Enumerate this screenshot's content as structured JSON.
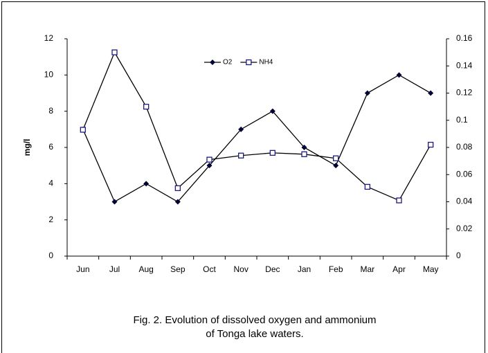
{
  "chart_data": {
    "type": "line",
    "categories": [
      "Jun",
      "Jul",
      "Aug",
      "Sep",
      "Oct",
      "Nov",
      "Dec",
      "Jan",
      "Feb",
      "Mar",
      "Apr",
      "May"
    ],
    "series": [
      {
        "name": "O2",
        "color": "#000033",
        "marker": "diamond",
        "values": [
          7,
          3,
          4,
          3,
          5,
          7,
          8,
          6,
          5,
          9,
          10,
          9
        ]
      },
      {
        "name": "NH4",
        "color": "#1a1a80",
        "marker": "square",
        "axis": "y2",
        "values": [
          0.093,
          0.15,
          0.11,
          0.05,
          0.071,
          0.074,
          0.076,
          0.075,
          0.072,
          0.051,
          0.041,
          0.082
        ]
      }
    ],
    "ylabel": "mg/l",
    "ylim": [
      0,
      12
    ],
    "yticks": [
      0,
      2,
      4,
      6,
      8,
      10,
      12
    ],
    "y2lim": [
      0,
      0.16
    ],
    "y2ticks": [
      0,
      0.02,
      0.04,
      0.06,
      0.08,
      0.1,
      0.12,
      0.14,
      0.16
    ],
    "legend": "top",
    "caption": [
      "Fig. 2. Evolution of dissolved oxygen and ammonium",
      "of Tonga lake waters."
    ]
  }
}
